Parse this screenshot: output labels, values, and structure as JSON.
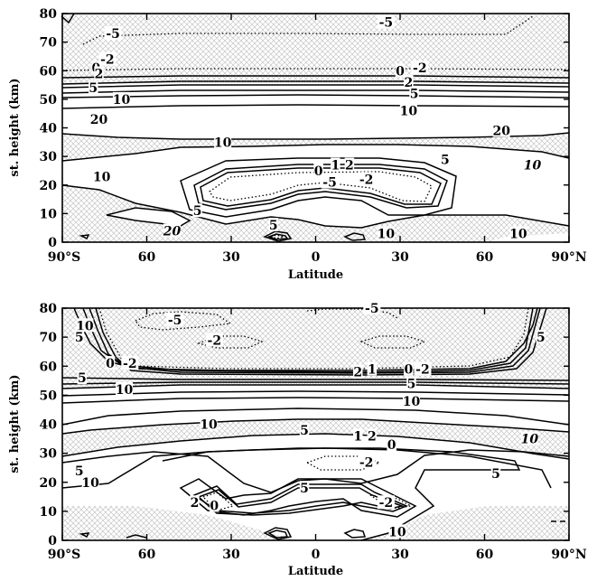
{
  "chart_data": [
    {
      "type": "contour",
      "panel": "top",
      "xlabel": "Latitude",
      "ylabel": "st. height (km)",
      "xlim": [
        -90,
        90
      ],
      "ylim": [
        0,
        80
      ],
      "x_ticks": [
        {
          "value": -90,
          "label": "90°S"
        },
        {
          "value": -60,
          "label": "60"
        },
        {
          "value": -30,
          "label": "30"
        },
        {
          "value": 0,
          "label": "0"
        },
        {
          "value": 30,
          "label": "30"
        },
        {
          "value": 60,
          "label": "60"
        },
        {
          "value": 90,
          "label": "90°N"
        }
      ],
      "y_ticks": [
        0,
        10,
        20,
        30,
        40,
        50,
        60,
        70,
        80
      ],
      "contour_levels": [
        -5,
        -2,
        0,
        1,
        2,
        5,
        10,
        20
      ],
      "negative_style": "dotted",
      "positive_style": "solid",
      "shading": "crosshatch where value below 10",
      "labels": [
        {
          "text": "-5",
          "x": -72,
          "y": 73
        },
        {
          "text": "-5",
          "x": 25,
          "y": 77
        },
        {
          "text": "-2",
          "x": -74,
          "y": 64
        },
        {
          "text": "0",
          "x": -78,
          "y": 61
        },
        {
          "text": "2",
          "x": -77,
          "y": 59
        },
        {
          "text": "5",
          "x": -79,
          "y": 54
        },
        {
          "text": "10",
          "x": -69,
          "y": 50
        },
        {
          "text": "0",
          "x": 30,
          "y": 60
        },
        {
          "text": "-2",
          "x": 37,
          "y": 61
        },
        {
          "text": "2",
          "x": 33,
          "y": 56
        },
        {
          "text": "5",
          "x": 35,
          "y": 52
        },
        {
          "text": "10",
          "x": 33,
          "y": 46
        },
        {
          "text": "20",
          "x": -77,
          "y": 43
        },
        {
          "text": "20",
          "x": 66,
          "y": 39
        },
        {
          "text": "10",
          "x": -33,
          "y": 35
        },
        {
          "text": "5",
          "x": 46,
          "y": 29
        },
        {
          "text": "10",
          "x": 77,
          "y": 27
        },
        {
          "text": "10",
          "x": -76,
          "y": 23
        },
        {
          "text": "0",
          "x": 1,
          "y": 25
        },
        {
          "text": "1",
          "x": 7,
          "y": 27
        },
        {
          "text": "2",
          "x": 12,
          "y": 27
        },
        {
          "text": "-5",
          "x": 5,
          "y": 21
        },
        {
          "text": "-2",
          "x": 18,
          "y": 22
        },
        {
          "text": "5",
          "x": -42,
          "y": 11
        },
        {
          "text": "20",
          "x": -51,
          "y": 4
        },
        {
          "text": "5",
          "x": -15,
          "y": 6
        },
        {
          "text": "10",
          "x": 25,
          "y": 3
        },
        {
          "text": "10",
          "x": 72,
          "y": 3
        }
      ]
    },
    {
      "type": "contour",
      "panel": "bottom",
      "xlabel": "Latitude",
      "ylabel": "st. height (km)",
      "xlim": [
        -90,
        90
      ],
      "ylim": [
        0,
        80
      ],
      "x_ticks": [
        {
          "value": -90,
          "label": "90°S"
        },
        {
          "value": -60,
          "label": "60"
        },
        {
          "value": -30,
          "label": "30"
        },
        {
          "value": 0,
          "label": "0"
        },
        {
          "value": 30,
          "label": "30"
        },
        {
          "value": 60,
          "label": "60"
        },
        {
          "value": 90,
          "label": "90°N"
        }
      ],
      "y_ticks": [
        0,
        10,
        20,
        30,
        40,
        50,
        60,
        70,
        80
      ],
      "contour_levels": [
        -5,
        -2,
        0,
        1,
        2,
        5,
        10
      ],
      "negative_style": "dotted",
      "positive_style": "solid",
      "shading": "crosshatch where value below 10",
      "labels": [
        {
          "text": "-5",
          "x": -50,
          "y": 76
        },
        {
          "text": "-5",
          "x": 20,
          "y": 80
        },
        {
          "text": "10",
          "x": -82,
          "y": 74
        },
        {
          "text": "5",
          "x": -84,
          "y": 70
        },
        {
          "text": "-2",
          "x": -36,
          "y": 69
        },
        {
          "text": "5",
          "x": 80,
          "y": 70
        },
        {
          "text": "0",
          "x": -73,
          "y": 61
        },
        {
          "text": "-2",
          "x": -66,
          "y": 61
        },
        {
          "text": "5",
          "x": -83,
          "y": 56
        },
        {
          "text": "10",
          "x": -68,
          "y": 52
        },
        {
          "text": "2",
          "x": 15,
          "y": 58
        },
        {
          "text": "1",
          "x": 20,
          "y": 59
        },
        {
          "text": "0",
          "x": 33,
          "y": 59
        },
        {
          "text": "-2",
          "x": 38,
          "y": 59
        },
        {
          "text": "5",
          "x": 34,
          "y": 54
        },
        {
          "text": "10",
          "x": 34,
          "y": 48
        },
        {
          "text": "10",
          "x": -38,
          "y": 40
        },
        {
          "text": "5",
          "x": -4,
          "y": 38
        },
        {
          "text": "1",
          "x": 15,
          "y": 36
        },
        {
          "text": "2",
          "x": 20,
          "y": 36
        },
        {
          "text": "0",
          "x": 27,
          "y": 33
        },
        {
          "text": "10",
          "x": 76,
          "y": 35
        },
        {
          "text": "5",
          "x": 64,
          "y": 23
        },
        {
          "text": "5",
          "x": -84,
          "y": 24
        },
        {
          "text": "10",
          "x": -80,
          "y": 20
        },
        {
          "text": "-2",
          "x": 18,
          "y": 27
        },
        {
          "text": "5",
          "x": -4,
          "y": 18
        },
        {
          "text": "2",
          "x": -43,
          "y": 13
        },
        {
          "text": "0",
          "x": -36,
          "y": 12
        },
        {
          "text": "-2",
          "x": 25,
          "y": 13
        },
        {
          "text": "10",
          "x": 29,
          "y": 3
        }
      ]
    }
  ]
}
